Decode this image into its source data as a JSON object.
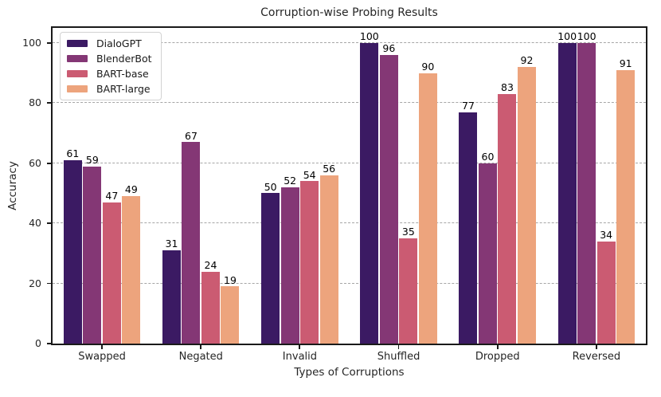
{
  "chart_data": {
    "type": "bar",
    "title": "Corruption-wise Probing Results",
    "xlabel": "Types of Corruptions",
    "ylabel": "Accuracy",
    "categories": [
      "Swapped",
      "Negated",
      "Invalid",
      "Shuffled",
      "Dropped",
      "Reversed"
    ],
    "series": [
      {
        "name": "DialoGPT",
        "color": "#3b1a63",
        "values": [
          61,
          31,
          50,
          100,
          77,
          100
        ]
      },
      {
        "name": "BlenderBot",
        "color": "#843775",
        "values": [
          59,
          67,
          52,
          96,
          60,
          100
        ]
      },
      {
        "name": "BART-base",
        "color": "#cb5b72",
        "values": [
          47,
          24,
          54,
          35,
          83,
          34
        ]
      },
      {
        "name": "BART-large",
        "color": "#eda47d",
        "values": [
          49,
          19,
          56,
          90,
          92,
          91
        ]
      }
    ],
    "yticks": [
      0,
      20,
      40,
      60,
      80,
      100
    ],
    "ylim": [
      0,
      105
    ],
    "grid": "horizontal-dashed",
    "legend_position": "upper-left",
    "bar_value_labels": true
  },
  "colors": {
    "grid": "#a6a6a6",
    "spine": "#1a1a1a",
    "text": "#262626",
    "legend_border": "#d2d2d2",
    "background": "#ffffff"
  }
}
